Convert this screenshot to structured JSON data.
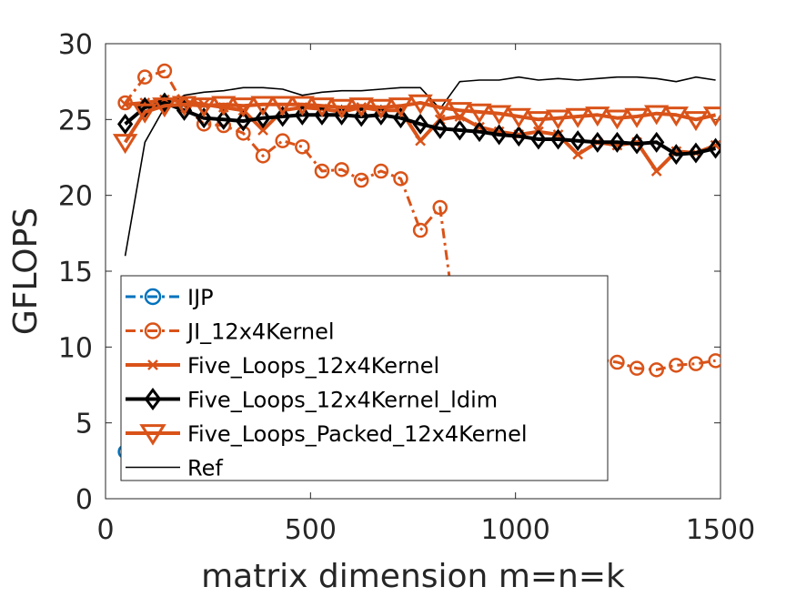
{
  "chart_data": {
    "type": "line",
    "xlabel": "matrix dimension m=n=k",
    "ylabel": "GFLOPS",
    "xlim": [
      0,
      1500
    ],
    "ylim": [
      0,
      30
    ],
    "xticks": [
      "0",
      "500",
      "1000",
      "1500"
    ],
    "yticks": [
      "0",
      "5",
      "10",
      "15",
      "20",
      "25",
      "30"
    ],
    "grid": false,
    "legend_position": "lower-left",
    "colors": {
      "blue": "#0072BD",
      "orange": "#D95319",
      "black": "#000000"
    },
    "series": [
      {
        "name": "IJP",
        "color": "#0072BD",
        "marker": "circle",
        "linestyle": "dash-dot",
        "x": [
          48,
          96
        ],
        "y": [
          3.1,
          3.0
        ]
      },
      {
        "name": "JI_12x4Kernel",
        "color": "#D95319",
        "marker": "circle",
        "linestyle": "dash-dot",
        "x": [
          48,
          96,
          144,
          192,
          240,
          288,
          336,
          384,
          432,
          480,
          528,
          576,
          624,
          672,
          720,
          768,
          816,
          864,
          912,
          960,
          1008,
          1056,
          1104,
          1152,
          1200,
          1248,
          1296,
          1344,
          1392,
          1440,
          1488
        ],
        "y": [
          26.1,
          27.8,
          28.2,
          25.9,
          24.7,
          24.6,
          24.1,
          22.6,
          23.6,
          23.2,
          21.6,
          21.7,
          21.0,
          21.6,
          21.1,
          17.7,
          19.2,
          9.5,
          9.2,
          9.3,
          9.0,
          9.4,
          9.1,
          9.3,
          9.2,
          9.0,
          8.6,
          8.5,
          8.8,
          8.9,
          9.1
        ]
      },
      {
        "name": "Five_Loops_12x4Kernel",
        "color": "#D95319",
        "marker": "x",
        "linestyle": "solid",
        "x": [
          48,
          96,
          144,
          192,
          240,
          288,
          336,
          384,
          432,
          480,
          528,
          576,
          624,
          672,
          720,
          768,
          816,
          864,
          912,
          960,
          1008,
          1056,
          1104,
          1152,
          1200,
          1248,
          1296,
          1344,
          1392,
          1440,
          1488
        ],
        "y": [
          26.0,
          26.1,
          26.3,
          26.2,
          26.0,
          25.8,
          25.6,
          24.3,
          25.6,
          25.8,
          25.7,
          25.5,
          25.8,
          25.6,
          25.6,
          23.6,
          25.0,
          25.2,
          24.5,
          24.2,
          24.0,
          24.2,
          24.0,
          22.7,
          23.5,
          23.3,
          23.5,
          21.6,
          22.9,
          22.8,
          23.3
        ]
      },
      {
        "name": "Five_Loops_12x4Kernel_ldim",
        "color": "#000000",
        "marker": "diamond",
        "linestyle": "solid",
        "x": [
          48,
          96,
          144,
          192,
          240,
          288,
          336,
          384,
          432,
          480,
          528,
          576,
          624,
          672,
          720,
          768,
          816,
          864,
          912,
          960,
          1008,
          1056,
          1104,
          1152,
          1200,
          1248,
          1296,
          1344,
          1392,
          1440,
          1488
        ],
        "y": [
          24.7,
          25.8,
          26.1,
          25.6,
          25.1,
          25.0,
          24.9,
          25.1,
          25.2,
          25.3,
          25.3,
          25.3,
          25.2,
          25.3,
          25.1,
          24.7,
          24.4,
          24.3,
          24.2,
          24.0,
          23.9,
          23.7,
          23.7,
          23.6,
          23.5,
          23.5,
          23.4,
          23.5,
          22.7,
          22.8,
          23.1
        ]
      },
      {
        "name": "Five_Loops_Packed_12x4Kernel",
        "color": "#D95319",
        "marker": "triangle-down",
        "linestyle": "solid",
        "x": [
          48,
          96,
          144,
          192,
          240,
          288,
          336,
          384,
          432,
          480,
          528,
          576,
          624,
          672,
          720,
          768,
          816,
          864,
          912,
          960,
          1008,
          1056,
          1104,
          1152,
          1200,
          1248,
          1296,
          1344,
          1392,
          1440,
          1488
        ],
        "y": [
          23.5,
          25.5,
          25.9,
          26.0,
          25.9,
          26.0,
          25.9,
          26.0,
          26.0,
          26.0,
          25.9,
          25.8,
          25.9,
          25.8,
          25.9,
          26.1,
          25.8,
          25.6,
          25.5,
          25.4,
          25.2,
          25.0,
          25.1,
          25.2,
          25.3,
          25.1,
          25.2,
          25.4,
          25.3,
          25.0,
          25.3
        ]
      },
      {
        "name": "Ref",
        "color": "#000000",
        "marker": "none",
        "linestyle": "solid",
        "x": [
          48,
          96,
          144,
          192,
          240,
          288,
          336,
          384,
          432,
          480,
          528,
          576,
          624,
          672,
          720,
          768,
          816,
          864,
          912,
          960,
          1008,
          1056,
          1104,
          1152,
          1200,
          1248,
          1296,
          1344,
          1392,
          1440,
          1488
        ],
        "y": [
          16.0,
          23.5,
          25.8,
          26.6,
          26.8,
          26.9,
          27.1,
          27.1,
          27.0,
          26.6,
          26.8,
          26.9,
          26.9,
          27.0,
          27.1,
          27.1,
          25.7,
          27.5,
          27.6,
          27.6,
          27.8,
          27.6,
          27.7,
          27.6,
          27.7,
          27.8,
          27.8,
          27.7,
          27.5,
          27.8,
          27.6
        ]
      }
    ]
  }
}
